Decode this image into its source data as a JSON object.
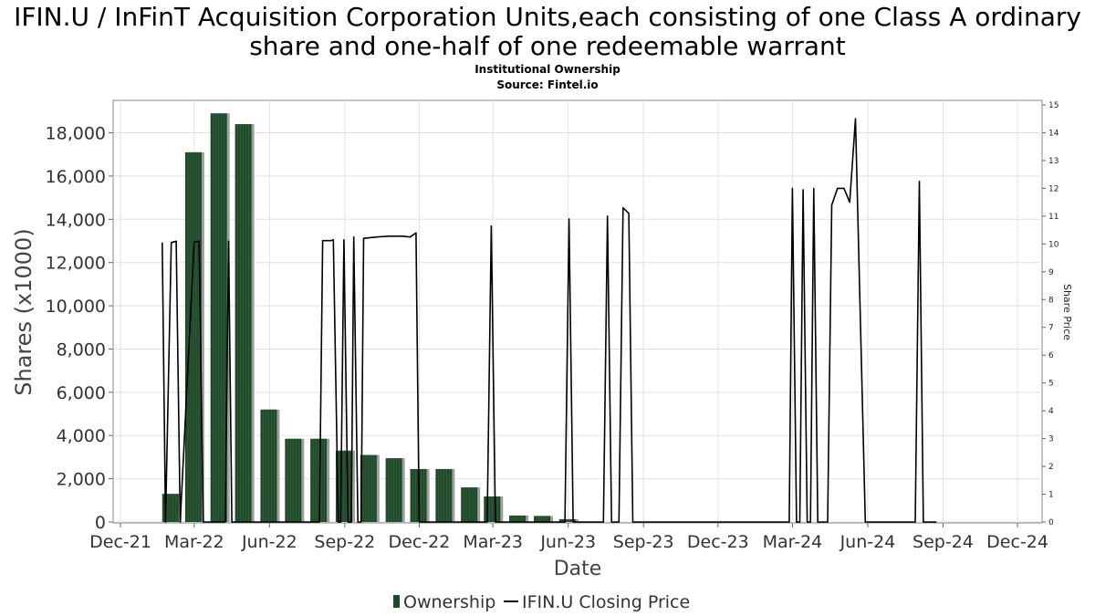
{
  "chart_data": {
    "type": "bar",
    "title": "IFIN.U / InFinT Acquisition Corporation Units,each consisting of one Class A ordinary share and one-half of one redeemable warrant",
    "title_lines": [
      "IFIN.U / InFinT Acquisition Corporation Units,each consisting of one Class A ordinary",
      "share and one-half of one redeemable warrant"
    ],
    "subtitle_lines": [
      "Institutional Ownership",
      "Source: Fintel.io"
    ],
    "xlabel": "Date",
    "ylabel": "Shares (x1000)",
    "y2label": "Share Price",
    "ylim": [
      0,
      19500
    ],
    "y2lim": [
      0,
      15
    ],
    "xlim": [
      "2021-11-22",
      "2024-12-31"
    ],
    "grid": true,
    "legend_position": "bottom",
    "x_ticks": [
      {
        "label": "Dec-21",
        "date": "2021-12-01"
      },
      {
        "label": "Mar-22",
        "date": "2022-03-01"
      },
      {
        "label": "Jun-22",
        "date": "2022-06-01"
      },
      {
        "label": "Sep-22",
        "date": "2022-09-01"
      },
      {
        "label": "Dec-22",
        "date": "2022-12-01"
      },
      {
        "label": "Mar-23",
        "date": "2023-03-01"
      },
      {
        "label": "Jun-23",
        "date": "2023-06-01"
      },
      {
        "label": "Sep-23",
        "date": "2023-09-01"
      },
      {
        "label": "Dec-23",
        "date": "2023-12-01"
      },
      {
        "label": "Mar-24",
        "date": "2024-03-01"
      },
      {
        "label": "Jun-24",
        "date": "2024-06-01"
      },
      {
        "label": "Sep-24",
        "date": "2024-09-01"
      },
      {
        "label": "Dec-24",
        "date": "2024-12-01"
      }
    ],
    "y_ticks": [
      "0",
      "2,000",
      "4,000",
      "6,000",
      "8,000",
      "10,000",
      "12,000",
      "14,000",
      "16,000",
      "18,000"
    ],
    "y_tick_values": [
      0,
      2000,
      4000,
      6000,
      8000,
      10000,
      12000,
      14000,
      16000,
      18000
    ],
    "y2_ticks": [
      "0",
      "1",
      "2",
      "3",
      "4",
      "5",
      "6",
      "7",
      "8",
      "9",
      "10",
      "11",
      "12",
      "13",
      "14",
      "15"
    ],
    "y2_tick_values": [
      0,
      1,
      2,
      3,
      4,
      5,
      6,
      7,
      8,
      9,
      10,
      11,
      12,
      13,
      14,
      15
    ],
    "series": [
      {
        "name": "Ownership",
        "type": "bar",
        "color": "#1f4a2a",
        "points": [
          {
            "date": "2022-01-31",
            "value": 1300
          },
          {
            "date": "2022-02-28",
            "value": 17100
          },
          {
            "date": "2022-03-31",
            "value": 18900
          },
          {
            "date": "2022-04-30",
            "value": 18400
          },
          {
            "date": "2022-05-31",
            "value": 5200
          },
          {
            "date": "2022-06-30",
            "value": 3850
          },
          {
            "date": "2022-07-31",
            "value": 3850
          },
          {
            "date": "2022-08-31",
            "value": 3300
          },
          {
            "date": "2022-09-30",
            "value": 3100
          },
          {
            "date": "2022-10-31",
            "value": 2950
          },
          {
            "date": "2022-11-30",
            "value": 2450
          },
          {
            "date": "2022-12-31",
            "value": 2450
          },
          {
            "date": "2023-01-31",
            "value": 1600
          },
          {
            "date": "2023-02-28",
            "value": 1180
          },
          {
            "date": "2023-03-31",
            "value": 300
          },
          {
            "date": "2023-04-30",
            "value": 280
          },
          {
            "date": "2023-05-31",
            "value": 130
          }
        ]
      },
      {
        "name": "IFIN.U Closing Price",
        "type": "line",
        "color": "#000000",
        "points": [
          {
            "date": "2022-01-21",
            "value": 10.05
          },
          {
            "date": "2022-01-25",
            "value": 0
          },
          {
            "date": "2022-02-01",
            "value": 10.05
          },
          {
            "date": "2022-02-07",
            "value": 10.1
          },
          {
            "date": "2022-02-12",
            "value": 0
          },
          {
            "date": "2022-03-01",
            "value": 10.07
          },
          {
            "date": "2022-03-07",
            "value": 10.1
          },
          {
            "date": "2022-03-12",
            "value": 0
          },
          {
            "date": "2022-04-08",
            "value": 0
          },
          {
            "date": "2022-04-12",
            "value": 10.1
          },
          {
            "date": "2022-04-16",
            "value": 0
          },
          {
            "date": "2022-08-01",
            "value": 0
          },
          {
            "date": "2022-08-05",
            "value": 10.12
          },
          {
            "date": "2022-08-15",
            "value": 10.12
          },
          {
            "date": "2022-08-18",
            "value": 10.15
          },
          {
            "date": "2022-08-24",
            "value": 0
          },
          {
            "date": "2022-08-27",
            "value": 0
          },
          {
            "date": "2022-08-31",
            "value": 10.15
          },
          {
            "date": "2022-09-05",
            "value": 0
          },
          {
            "date": "2022-09-09",
            "value": 0
          },
          {
            "date": "2022-09-12",
            "value": 10.25
          },
          {
            "date": "2022-09-17",
            "value": 0
          },
          {
            "date": "2022-09-21",
            "value": 0
          },
          {
            "date": "2022-09-24",
            "value": 10.2
          },
          {
            "date": "2022-10-10",
            "value": 10.25
          },
          {
            "date": "2022-10-25",
            "value": 10.28
          },
          {
            "date": "2022-11-10",
            "value": 10.28
          },
          {
            "date": "2022-11-20",
            "value": 10.25
          },
          {
            "date": "2022-11-27",
            "value": 10.4
          },
          {
            "date": "2022-12-01",
            "value": 0
          },
          {
            "date": "2023-02-22",
            "value": 0
          },
          {
            "date": "2023-02-27",
            "value": 10.65
          },
          {
            "date": "2023-03-04",
            "value": 0
          },
          {
            "date": "2023-05-28",
            "value": 0
          },
          {
            "date": "2023-06-02",
            "value": 10.9
          },
          {
            "date": "2023-06-07",
            "value": 0
          },
          {
            "date": "2023-07-14",
            "value": 0
          },
          {
            "date": "2023-07-19",
            "value": 11.0
          },
          {
            "date": "2023-07-24",
            "value": 0
          },
          {
            "date": "2023-08-02",
            "value": 0
          },
          {
            "date": "2023-08-07",
            "value": 11.3
          },
          {
            "date": "2023-08-14",
            "value": 11.1
          },
          {
            "date": "2023-08-19",
            "value": 0
          },
          {
            "date": "2024-02-26",
            "value": 0
          },
          {
            "date": "2024-03-01",
            "value": 12.0
          },
          {
            "date": "2024-03-06",
            "value": 0
          },
          {
            "date": "2024-03-10",
            "value": 0
          },
          {
            "date": "2024-03-14",
            "value": 11.95
          },
          {
            "date": "2024-03-19",
            "value": 0
          },
          {
            "date": "2024-03-23",
            "value": 0
          },
          {
            "date": "2024-03-27",
            "value": 12.0
          },
          {
            "date": "2024-04-01",
            "value": 0
          },
          {
            "date": "2024-04-13",
            "value": 0
          },
          {
            "date": "2024-04-18",
            "value": 11.4
          },
          {
            "date": "2024-04-25",
            "value": 12.0
          },
          {
            "date": "2024-05-03",
            "value": 12.0
          },
          {
            "date": "2024-05-10",
            "value": 11.5
          },
          {
            "date": "2024-05-17",
            "value": 14.5
          },
          {
            "date": "2024-05-29",
            "value": 0
          },
          {
            "date": "2024-07-29",
            "value": 0
          },
          {
            "date": "2024-08-03",
            "value": 12.25
          },
          {
            "date": "2024-08-08",
            "value": 0
          },
          {
            "date": "2024-08-24",
            "value": 0
          }
        ]
      }
    ]
  }
}
